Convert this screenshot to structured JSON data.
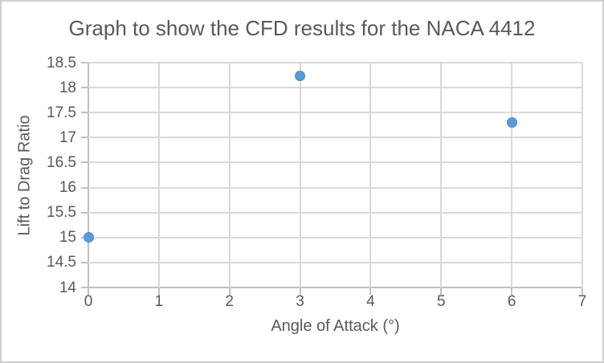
{
  "chart_data": {
    "type": "scatter",
    "title": "Graph to show the CFD results for the NACA 4412",
    "xlabel": "Angle of Attack (°)",
    "ylabel": "Lift to Drag Ratio",
    "points": [
      {
        "x": 0,
        "y": 15.0
      },
      {
        "x": 3,
        "y": 18.24
      },
      {
        "x": 6,
        "y": 17.31
      }
    ],
    "xlim": [
      0,
      7
    ],
    "ylim": [
      14,
      18.5
    ],
    "x_ticks": [
      0,
      1,
      2,
      3,
      4,
      5,
      6,
      7
    ],
    "y_ticks": [
      14,
      14.5,
      15,
      15.5,
      16,
      16.5,
      17,
      17.5,
      18,
      18.5
    ],
    "grid": true,
    "legend_position": "none",
    "marker_color": "#5b9bd5"
  },
  "colors": {
    "text": "#595959",
    "gridline": "#d9d9d9",
    "axis_line": "#bfbfbf",
    "frame_border": "#d0d0d0",
    "background": "#ffffff",
    "marker": "#5b9bd5"
  }
}
